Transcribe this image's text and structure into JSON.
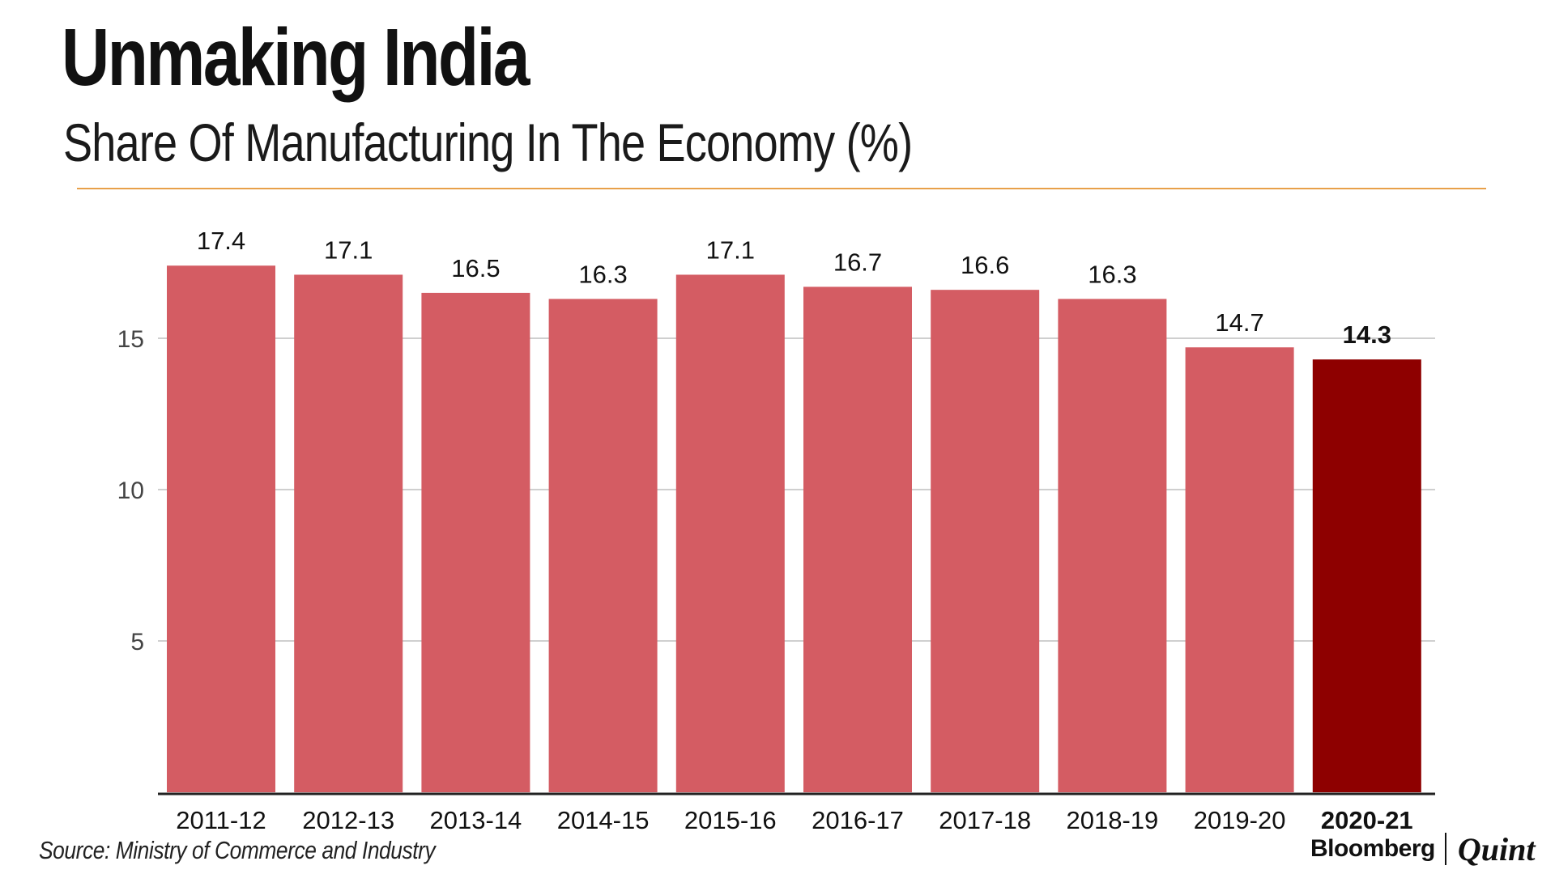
{
  "header": {
    "title": "Unmaking India",
    "subtitle": "Share Of Manufacturing In The Economy (%)"
  },
  "footer": {
    "source": "Source: Ministry of Commerce and Industry",
    "brand_primary": "Bloomberg",
    "brand_secondary": "Quint"
  },
  "colors": {
    "bar": "#d45c63",
    "highlight_bar": "#8e0000",
    "title_rule": "#e8a04a",
    "gridline": "#cfcfcf",
    "axis": "#222222"
  },
  "chart_data": {
    "type": "bar",
    "title": "Unmaking India",
    "subtitle": "Share Of Manufacturing In The Economy (%)",
    "xlabel": "",
    "ylabel": "",
    "categories": [
      "2011-12",
      "2012-13",
      "2013-14",
      "2014-15",
      "2015-16",
      "2016-17",
      "2017-18",
      "2018-19",
      "2019-20",
      "2020-21"
    ],
    "values": [
      17.4,
      17.1,
      16.5,
      16.3,
      17.1,
      16.7,
      16.6,
      16.3,
      14.7,
      14.3
    ],
    "value_labels": [
      "17.4",
      "17.1",
      "16.5",
      "16.3",
      "17.1",
      "16.7",
      "16.6",
      "16.3",
      "14.7",
      "14.3"
    ],
    "highlight_index": 9,
    "ylim": [
      0,
      17.4
    ],
    "yticks": [
      5,
      10,
      15
    ],
    "ytick_labels": [
      "5",
      "10",
      "15"
    ],
    "grid": true,
    "legend": "none",
    "source": "Source: Ministry of Commerce and Industry"
  }
}
